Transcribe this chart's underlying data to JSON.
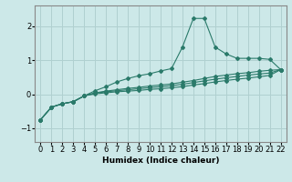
{
  "xlabel": "Humidex (Indice chaleur)",
  "ylabel": "",
  "bg_color": "#cce8e8",
  "grid_color": "#b0d0d0",
  "line_color": "#2a7a6a",
  "xlim": [
    -0.5,
    22.5
  ],
  "ylim": [
    -1.4,
    2.6
  ],
  "x": [
    0,
    1,
    2,
    3,
    4,
    5,
    6,
    7,
    8,
    9,
    10,
    11,
    12,
    13,
    14,
    15,
    16,
    17,
    18,
    19,
    20,
    21,
    22
  ],
  "line1": [
    -0.75,
    -0.38,
    -0.28,
    -0.22,
    -0.05,
    0.1,
    0.22,
    0.36,
    0.46,
    0.54,
    0.6,
    0.68,
    0.75,
    1.38,
    2.22,
    2.22,
    1.38,
    1.18,
    1.05,
    1.05,
    1.05,
    1.02,
    0.72
  ],
  "line2": [
    -0.75,
    -0.38,
    -0.28,
    -0.22,
    -0.05,
    0.04,
    0.09,
    0.13,
    0.17,
    0.2,
    0.24,
    0.27,
    0.3,
    0.35,
    0.4,
    0.46,
    0.52,
    0.56,
    0.6,
    0.63,
    0.67,
    0.7,
    0.72
  ],
  "line3": [
    -0.75,
    -0.38,
    -0.28,
    -0.22,
    -0.05,
    0.03,
    0.07,
    0.1,
    0.13,
    0.16,
    0.19,
    0.22,
    0.25,
    0.29,
    0.34,
    0.39,
    0.44,
    0.48,
    0.52,
    0.56,
    0.59,
    0.62,
    0.72
  ],
  "line4": [
    -0.75,
    -0.38,
    -0.28,
    -0.22,
    -0.05,
    0.01,
    0.04,
    0.07,
    0.09,
    0.11,
    0.14,
    0.16,
    0.19,
    0.22,
    0.27,
    0.31,
    0.36,
    0.4,
    0.44,
    0.47,
    0.51,
    0.55,
    0.72
  ]
}
